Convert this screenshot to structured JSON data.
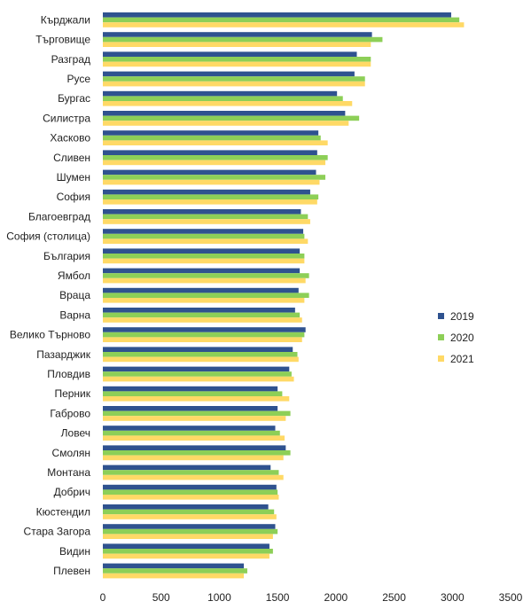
{
  "chart_data": {
    "type": "bar",
    "orientation": "horizontal",
    "title": "",
    "xlabel": "",
    "ylabel": "",
    "xlim": [
      0,
      3500
    ],
    "x_ticks": [
      0,
      500,
      1000,
      1500,
      2000,
      2500,
      3000,
      3500
    ],
    "grid": false,
    "legend_position": "right",
    "categories": [
      "Кърджали",
      "Търговище",
      "Разград",
      "Русе",
      "Бургас",
      "Силистра",
      "Хасково",
      "Сливен",
      "Шумен",
      "София",
      "Благоевград",
      "София (столица)",
      "България",
      "Ямбол",
      "Враца",
      "Варна",
      "Велико Търново",
      "Пазарджик",
      "Пловдив",
      "Перник",
      "Габрово",
      "Ловеч",
      "Смолян",
      "Монтана",
      "Добрич",
      "Кюстендил",
      "Стара Загора",
      "Видин",
      "Плевен"
    ],
    "series": [
      {
        "name": "2019",
        "color": "#2f528f",
        "values": [
          2990,
          2310,
          2180,
          2160,
          2010,
          2080,
          1850,
          1840,
          1830,
          1780,
          1700,
          1720,
          1690,
          1690,
          1680,
          1650,
          1740,
          1630,
          1600,
          1500,
          1500,
          1480,
          1570,
          1440,
          1490,
          1420,
          1480,
          1430,
          1210
        ]
      },
      {
        "name": "2020",
        "color": "#8dcf57",
        "values": [
          3060,
          2400,
          2300,
          2250,
          2060,
          2200,
          1870,
          1930,
          1910,
          1850,
          1760,
          1730,
          1730,
          1770,
          1770,
          1690,
          1730,
          1670,
          1620,
          1540,
          1610,
          1520,
          1610,
          1510,
          1500,
          1470,
          1500,
          1460,
          1240
        ]
      },
      {
        "name": "2021",
        "color": "#ffd966",
        "values": [
          3100,
          2300,
          2300,
          2250,
          2140,
          2110,
          1930,
          1910,
          1860,
          1840,
          1780,
          1760,
          1730,
          1740,
          1730,
          1710,
          1710,
          1680,
          1640,
          1600,
          1570,
          1560,
          1550,
          1550,
          1510,
          1490,
          1460,
          1430,
          1210
        ]
      }
    ]
  }
}
